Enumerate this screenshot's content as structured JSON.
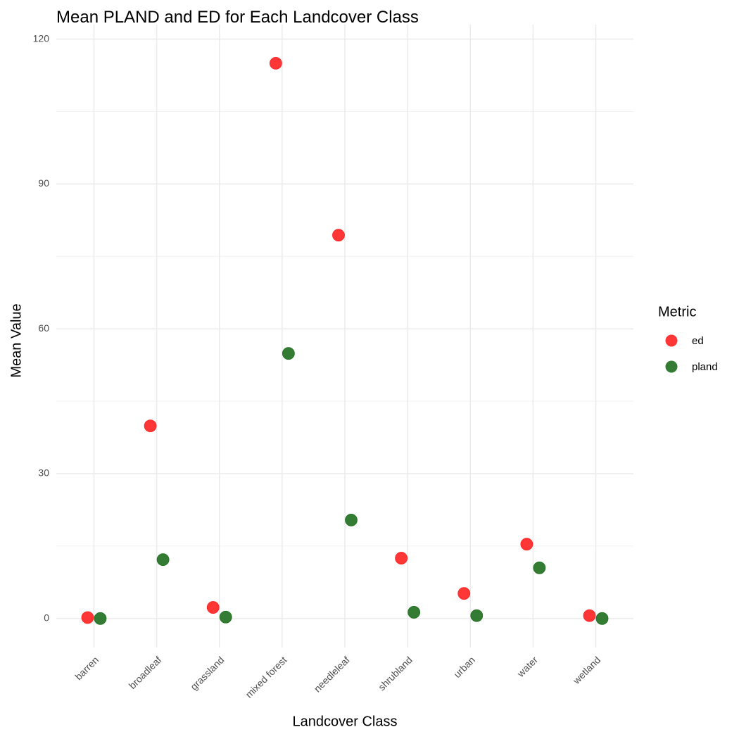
{
  "chart_data": {
    "type": "dot",
    "title": "Mean PLAND and ED for Each Landcover Class",
    "x_label": "Landcover Class",
    "y_label": "Mean Value",
    "categories": [
      "barren",
      "broadleaf",
      "grassland",
      "mixed forest",
      "needleleaf",
      "shrubland",
      "urban",
      "water",
      "wetland"
    ],
    "series": [
      {
        "name": "ed",
        "color": "#ff2020",
        "values": [
          0.2,
          39.9,
          2.3,
          115.0,
          79.4,
          12.5,
          5.2,
          15.4,
          0.6
        ]
      },
      {
        "name": "pland",
        "color": "#1e6e1e",
        "values": [
          0,
          12.2,
          0.3,
          54.9,
          20.4,
          1.3,
          0.6,
          10.5,
          0
        ]
      }
    ],
    "legend_title": "Metric",
    "ylim": [
      -6,
      123
    ],
    "yticks": [
      0,
      30,
      60,
      90,
      120
    ],
    "grid": true
  }
}
